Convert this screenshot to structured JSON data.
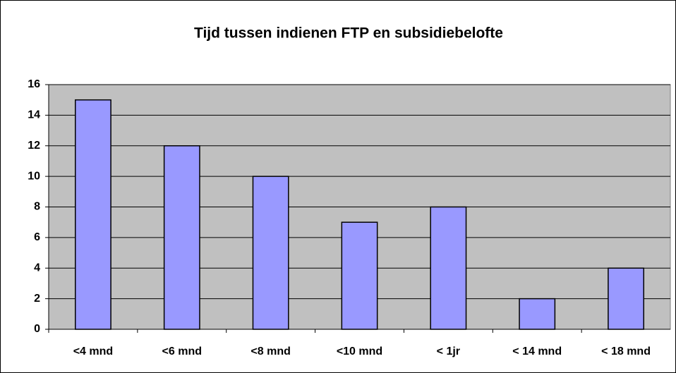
{
  "chart_data": {
    "type": "bar",
    "title": "Tijd tussen indienen FTP en subsidiebelofte",
    "categories": [
      "<4 mnd",
      "<6 mnd",
      "<8 mnd",
      "<10 mnd",
      "< 1jr",
      "< 14 mnd",
      "< 18 mnd"
    ],
    "values": [
      15,
      12,
      10,
      7,
      8,
      2,
      4
    ],
    "color": "#9999ff",
    "plot_background": "#c0c0c0",
    "ylim": [
      0,
      16
    ],
    "yticks": [
      0,
      2,
      4,
      6,
      8,
      10,
      12,
      14,
      16
    ],
    "grid": true
  }
}
